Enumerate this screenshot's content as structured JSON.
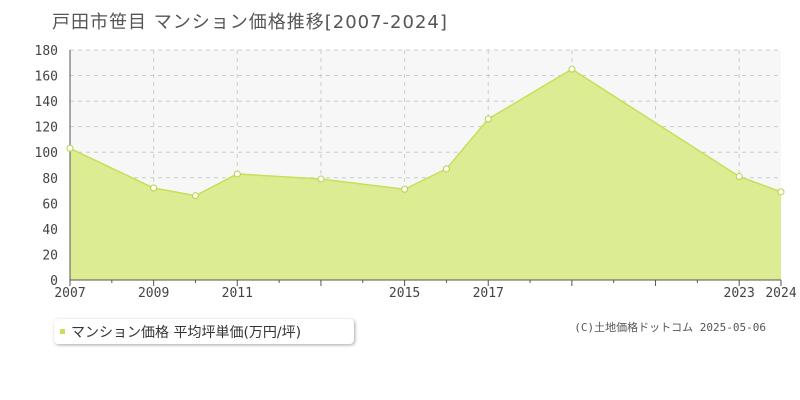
{
  "header": {
    "title": "戸田市笹目 マンション価格推移[2007-2024]"
  },
  "legend": {
    "label": "マンション価格 平均坪単価(万円/坪)"
  },
  "credit": {
    "text": "(C)土地価格ドットコム 2025-05-06"
  },
  "colors": {
    "fill": "#dbec92",
    "line": "#c5e05a",
    "grid": "#cccccc",
    "marker": "#ffffff"
  },
  "chart_data": {
    "type": "area",
    "title": "戸田市笹目 マンション価格推移[2007-2024]",
    "xlabel": "",
    "ylabel": "",
    "xlim": [
      2007,
      2024
    ],
    "ylim": [
      0,
      180
    ],
    "yticks": [
      0,
      20,
      40,
      60,
      80,
      100,
      120,
      140,
      160,
      180
    ],
    "xtick_labels": [
      "2007",
      "2009",
      "2011",
      "2015",
      "2017",
      "2023",
      "2024"
    ],
    "grid": true,
    "series": [
      {
        "name": "マンション価格 平均坪単価(万円/坪)",
        "points": [
          {
            "x": 2007,
            "y": 103
          },
          {
            "x": 2009,
            "y": 72
          },
          {
            "x": 2010,
            "y": 66
          },
          {
            "x": 2011,
            "y": 83
          },
          {
            "x": 2013,
            "y": 79
          },
          {
            "x": 2015,
            "y": 71
          },
          {
            "x": 2016,
            "y": 87
          },
          {
            "x": 2017,
            "y": 126
          },
          {
            "x": 2019,
            "y": 165
          },
          {
            "x": 2023,
            "y": 81
          },
          {
            "x": 2024,
            "y": 69
          }
        ]
      }
    ]
  }
}
